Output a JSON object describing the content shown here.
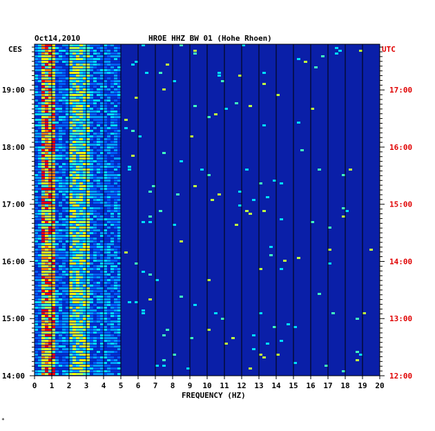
{
  "header": {
    "date": "Oct14,2010",
    "station": "HROE HHZ BW 01 (Hohe Rhoen)"
  },
  "chart_data": {
    "type": "heatmap",
    "title": "HROE HHZ BW 01 (Hohe Rhoen)",
    "date": "Oct14,2010",
    "xlabel": "FREQUENCY (HZ)",
    "xlim": [
      0,
      20
    ],
    "x_ticks": [
      "0",
      "1",
      "2",
      "3",
      "4",
      "5",
      "6",
      "7",
      "8",
      "9",
      "10",
      "11",
      "12",
      "13",
      "14",
      "15",
      "16",
      "17",
      "18",
      "19",
      "20"
    ],
    "left_axis_label": "CES",
    "right_axis_label": "UTC",
    "left_ticks": [
      "19:00",
      "18:00",
      "17:00",
      "16:00",
      "15:00",
      "14:00"
    ],
    "right_ticks": [
      "17:00",
      "16:00",
      "15:00",
      "14:00",
      "13:00",
      "12:00"
    ],
    "left_tick_hours": [
      19,
      18,
      17,
      16,
      15,
      14
    ],
    "time_range_local_hours": [
      14,
      19.8
    ],
    "gridlines": "vertical every 1 Hz",
    "colors": {
      "background": "#0a1fa8",
      "low": "#0000aa",
      "mid": "#00c0ff",
      "high": "#ffff00",
      "peak": "#ff0000",
      "utc_label": "#e00000"
    },
    "dominant_bands_hz": [
      [
        0.3,
        1.0
      ],
      [
        1.8,
        3.0
      ]
    ]
  },
  "footer": {
    "mark": "*"
  }
}
